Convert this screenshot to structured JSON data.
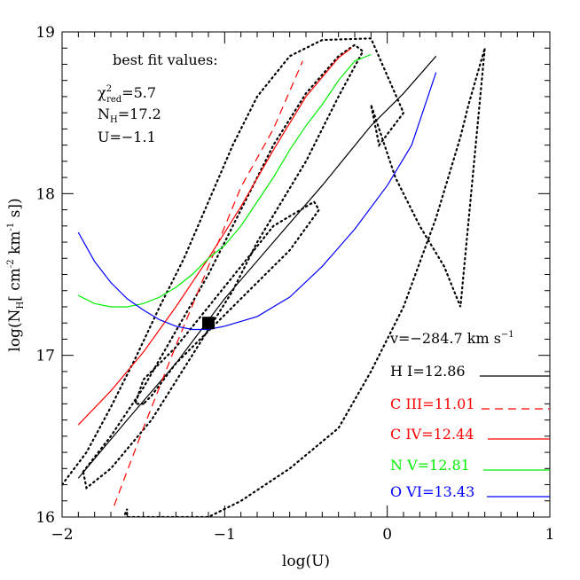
{
  "chart_data": {
    "type": "line",
    "xlabel": "log(U)",
    "ylabel_main": "log(N",
    "ylabel_sub": "H",
    "ylabel_rest": "[ cm",
    "ylabel_exp1": "-2",
    "ylabel_km": " km",
    "ylabel_exp2": "-1",
    "ylabel_end": " s])",
    "xlim": [
      -2,
      1
    ],
    "ylim": [
      16,
      19
    ],
    "xticks": [
      -2,
      -1,
      0,
      1
    ],
    "xtick_labels": [
      "−2",
      "−1",
      "0",
      "1"
    ],
    "yticks": [
      16,
      17,
      18,
      19
    ],
    "ytick_labels": [
      "16",
      "17",
      "18",
      "19"
    ],
    "annotations": {
      "best_fit_title": "best fit values:",
      "chi_symbol": "χ",
      "chi_sup": "2",
      "chi_sub": "red",
      "chi_value": "=5.7",
      "nh_main": "N",
      "nh_sub": "H",
      "nh_value": "=17.2",
      "u_text": "U=−1.1",
      "velocity_text": "v=−284.7 km s",
      "velocity_exp": "−1"
    },
    "best_fit_point": {
      "x": -1.1,
      "y": 17.2
    },
    "series": [
      {
        "name": "H  I=12.86",
        "color": "#000000",
        "dash": "solid",
        "points": [
          [
            -1.9,
            16.24
          ],
          [
            -1.6,
            16.6
          ],
          [
            -1.3,
            16.95
          ],
          [
            -1.0,
            17.35
          ],
          [
            -0.7,
            17.7
          ],
          [
            -0.4,
            18.05
          ],
          [
            -0.1,
            18.42
          ],
          [
            0.1,
            18.62
          ],
          [
            0.3,
            18.85
          ]
        ]
      },
      {
        "name": "C  III=11.01",
        "color": "#ff0000",
        "dash": "dashed",
        "points": [
          [
            -1.68,
            16.07
          ],
          [
            -1.5,
            16.55
          ],
          [
            -1.3,
            17.06
          ],
          [
            -1.1,
            17.55
          ],
          [
            -0.9,
            18.04
          ],
          [
            -0.7,
            18.4
          ],
          [
            -0.52,
            18.82
          ]
        ]
      },
      {
        "name": "C  IV=12.44",
        "color": "#ff0000",
        "dash": "solid",
        "points": [
          [
            -1.9,
            16.57
          ],
          [
            -1.7,
            16.78
          ],
          [
            -1.5,
            17.02
          ],
          [
            -1.3,
            17.3
          ],
          [
            -1.1,
            17.6
          ],
          [
            -0.9,
            17.92
          ],
          [
            -0.7,
            18.27
          ],
          [
            -0.5,
            18.6
          ],
          [
            -0.3,
            18.84
          ],
          [
            -0.22,
            18.9
          ]
        ]
      },
      {
        "name": "N  V=12.81",
        "color": "#00ee00",
        "dash": "solid",
        "points": [
          [
            -1.9,
            17.37
          ],
          [
            -1.8,
            17.32
          ],
          [
            -1.7,
            17.3
          ],
          [
            -1.6,
            17.3
          ],
          [
            -1.5,
            17.32
          ],
          [
            -1.4,
            17.36
          ],
          [
            -1.3,
            17.42
          ],
          [
            -1.2,
            17.5
          ],
          [
            -1.1,
            17.6
          ],
          [
            -1.0,
            17.68
          ],
          [
            -0.9,
            17.8
          ],
          [
            -0.8,
            17.95
          ],
          [
            -0.7,
            18.1
          ],
          [
            -0.6,
            18.27
          ],
          [
            -0.5,
            18.42
          ],
          [
            -0.4,
            18.55
          ],
          [
            -0.3,
            18.7
          ],
          [
            -0.2,
            18.82
          ],
          [
            -0.1,
            18.86
          ]
        ]
      },
      {
        "name": "O  VI=13.43",
        "color": "#0000ff",
        "dash": "solid",
        "points": [
          [
            -1.9,
            17.76
          ],
          [
            -1.8,
            17.58
          ],
          [
            -1.7,
            17.45
          ],
          [
            -1.6,
            17.35
          ],
          [
            -1.5,
            17.28
          ],
          [
            -1.4,
            17.22
          ],
          [
            -1.3,
            17.18
          ],
          [
            -1.2,
            17.16
          ],
          [
            -1.1,
            17.16
          ],
          [
            -1.0,
            17.18
          ],
          [
            -0.8,
            17.24
          ],
          [
            -0.6,
            17.36
          ],
          [
            -0.4,
            17.55
          ],
          [
            -0.2,
            17.78
          ],
          [
            0.0,
            18.05
          ],
          [
            0.15,
            18.3
          ],
          [
            0.3,
            18.75
          ]
        ]
      }
    ],
    "contours": [
      {
        "name": "inner",
        "points": [
          [
            -1.5,
            16.7
          ],
          [
            -1.55,
            16.7
          ],
          [
            -1.5,
            16.85
          ],
          [
            -1.3,
            17.05
          ],
          [
            -1.1,
            17.3
          ],
          [
            -0.9,
            17.55
          ],
          [
            -0.7,
            17.8
          ],
          [
            -0.45,
            17.95
          ],
          [
            -0.42,
            17.9
          ],
          [
            -0.6,
            17.65
          ],
          [
            -0.85,
            17.4
          ],
          [
            -1.05,
            17.2
          ],
          [
            -1.3,
            16.95
          ],
          [
            -1.45,
            16.75
          ],
          [
            -1.5,
            16.7
          ]
        ]
      },
      {
        "name": "middle",
        "points": [
          [
            -1.87,
            16.28
          ],
          [
            -1.7,
            16.5
          ],
          [
            -1.5,
            16.8
          ],
          [
            -1.3,
            17.15
          ],
          [
            -1.1,
            17.5
          ],
          [
            -0.9,
            17.9
          ],
          [
            -0.7,
            18.3
          ],
          [
            -0.5,
            18.62
          ],
          [
            -0.3,
            18.85
          ],
          [
            -0.2,
            18.92
          ],
          [
            -0.15,
            18.88
          ],
          [
            -0.3,
            18.6
          ],
          [
            -0.5,
            18.2
          ],
          [
            -0.65,
            17.95
          ],
          [
            -0.8,
            17.7
          ],
          [
            -0.95,
            17.4
          ],
          [
            -1.2,
            17.0
          ],
          [
            -1.45,
            16.6
          ],
          [
            -1.7,
            16.3
          ],
          [
            -1.85,
            16.18
          ],
          [
            -1.87,
            16.28
          ]
        ]
      },
      {
        "name": "outer",
        "points": [
          [
            -2.0,
            16.2
          ],
          [
            -1.85,
            16.4
          ],
          [
            -1.7,
            16.68
          ],
          [
            -1.55,
            16.98
          ],
          [
            -1.4,
            17.3
          ],
          [
            -1.25,
            17.6
          ],
          [
            -1.1,
            17.95
          ],
          [
            -0.95,
            18.3
          ],
          [
            -0.8,
            18.6
          ],
          [
            -0.6,
            18.85
          ],
          [
            -0.4,
            18.95
          ],
          [
            -0.1,
            18.96
          ],
          [
            0.1,
            18.5
          ],
          [
            -0.05,
            18.3
          ],
          [
            -0.1,
            18.55
          ],
          [
            -0.05,
            18.4
          ],
          [
            0.05,
            18.1
          ],
          [
            0.2,
            17.8
          ],
          [
            0.35,
            17.55
          ],
          [
            0.45,
            17.3
          ],
          [
            0.6,
            18.9
          ],
          [
            0.5,
            18.55
          ],
          [
            0.45,
            18.35
          ],
          [
            0.3,
            17.85
          ],
          [
            0.1,
            17.3
          ],
          [
            -0.1,
            16.9
          ],
          [
            -0.3,
            16.55
          ],
          [
            -0.6,
            16.3
          ],
          [
            -0.9,
            16.1
          ],
          [
            -1.1,
            16.0
          ],
          [
            -1.6,
            16.0
          ],
          [
            -1.6,
            16.05
          ],
          [
            -1.62,
            16.0
          ]
        ]
      }
    ],
    "legend_labels": [
      {
        "text": "H  I=12.86",
        "color": "#000000",
        "dash": "solid"
      },
      {
        "text": "C  III=11.01",
        "color": "#ff0000",
        "dash": "dashed"
      },
      {
        "text": "C  IV=12.44",
        "color": "#ff0000",
        "dash": "solid"
      },
      {
        "text": "N  V=12.81",
        "color": "#00ee00",
        "dash": "solid"
      },
      {
        "text": "O  VI=13.43",
        "color": "#0000ff",
        "dash": "solid"
      }
    ]
  }
}
